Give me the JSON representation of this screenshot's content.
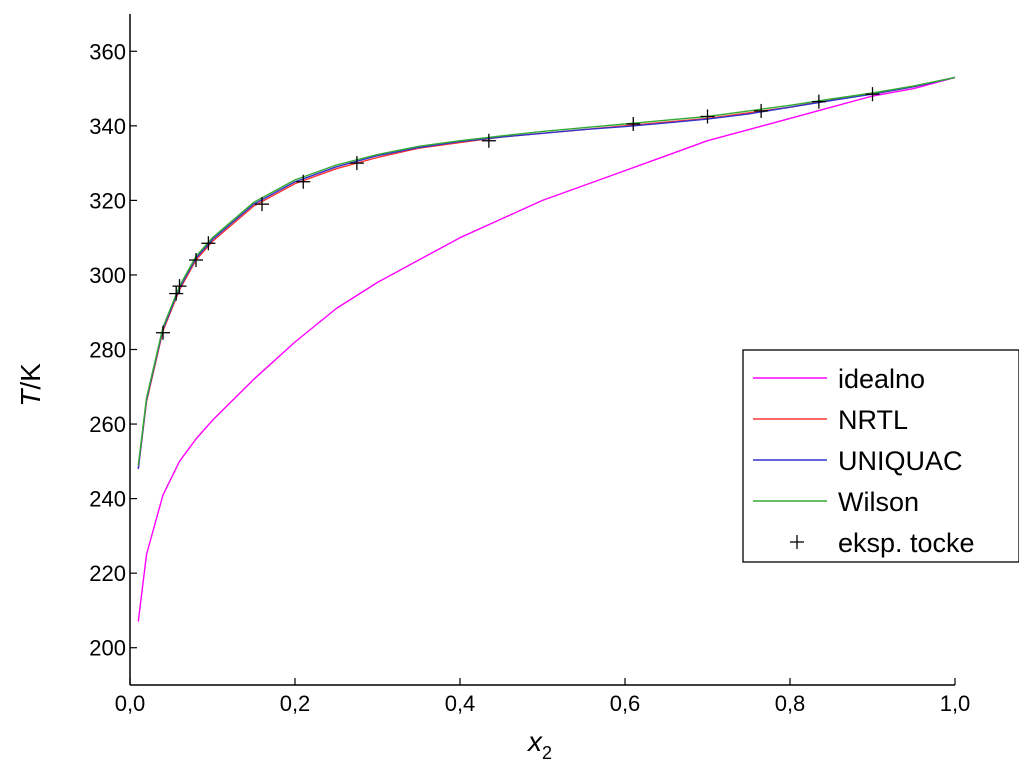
{
  "chart_data": {
    "type": "line",
    "title": "",
    "ylabel_italic": "T",
    "ylabel_rest": "/K",
    "xlabel_main": "x",
    "xlabel_sub": "2",
    "xlim": [
      0.0,
      1.0
    ],
    "ylim": [
      190,
      370
    ],
    "x_ticks": [
      0.0,
      0.2,
      0.4,
      0.6,
      0.8,
      1.0
    ],
    "x_tick_labels": [
      "0,0",
      "0,2",
      "0,4",
      "0,6",
      "0,8",
      "1,0"
    ],
    "y_ticks": [
      200,
      220,
      240,
      260,
      280,
      300,
      320,
      340,
      360
    ],
    "y_tick_labels": [
      "200",
      "220",
      "240",
      "260",
      "280",
      "300",
      "320",
      "340",
      "360"
    ],
    "grid": false,
    "legend_position": "right",
    "series": [
      {
        "name": "idealno",
        "color": "#ff00ff",
        "kind": "line",
        "x": [
          0.01,
          0.02,
          0.04,
          0.06,
          0.08,
          0.1,
          0.15,
          0.2,
          0.25,
          0.3,
          0.35,
          0.4,
          0.45,
          0.5,
          0.55,
          0.6,
          0.65,
          0.7,
          0.75,
          0.8,
          0.85,
          0.9,
          0.95,
          1.0
        ],
        "y": [
          207,
          225,
          241,
          250,
          256,
          261,
          272,
          282,
          291,
          298,
          304,
          310,
          315,
          320,
          324,
          328,
          332,
          336,
          339,
          342,
          345,
          348,
          350,
          353
        ]
      },
      {
        "name": "NRTL",
        "color": "#ff3333",
        "kind": "line",
        "x": [
          0.01,
          0.02,
          0.04,
          0.06,
          0.08,
          0.1,
          0.15,
          0.2,
          0.25,
          0.3,
          0.35,
          0.4,
          0.45,
          0.5,
          0.55,
          0.6,
          0.65,
          0.7,
          0.75,
          0.8,
          0.85,
          0.9,
          0.95,
          1.0
        ],
        "y": [
          248,
          266,
          285,
          296,
          304,
          309,
          318.5,
          324.5,
          328.5,
          331.5,
          334,
          335.5,
          337,
          338,
          339,
          340,
          341,
          342,
          343.5,
          345,
          347,
          348.5,
          350.5,
          353
        ]
      },
      {
        "name": "UNIQUAC",
        "color": "#3333cc",
        "kind": "line",
        "x": [
          0.01,
          0.02,
          0.04,
          0.06,
          0.08,
          0.1,
          0.15,
          0.2,
          0.25,
          0.3,
          0.35,
          0.4,
          0.45,
          0.5,
          0.55,
          0.6,
          0.65,
          0.7,
          0.75,
          0.8,
          0.85,
          0.9,
          0.95,
          1.0
        ],
        "y": [
          248,
          266.5,
          285.5,
          296.5,
          304.5,
          309.5,
          319,
          325,
          329,
          332,
          334.2,
          335.8,
          337,
          338,
          339,
          339.8,
          340.8,
          341.8,
          343.2,
          345,
          346.8,
          348.5,
          350.5,
          353
        ]
      },
      {
        "name": "Wilson",
        "color": "#33aa33",
        "kind": "line",
        "x": [
          0.01,
          0.02,
          0.04,
          0.06,
          0.08,
          0.1,
          0.15,
          0.2,
          0.25,
          0.3,
          0.35,
          0.4,
          0.45,
          0.5,
          0.55,
          0.6,
          0.65,
          0.7,
          0.75,
          0.8,
          0.85,
          0.9,
          0.95,
          1.0
        ],
        "y": [
          249,
          267,
          286,
          297,
          305,
          310,
          319.5,
          325.5,
          329.5,
          332.3,
          334.5,
          336,
          337.3,
          338.5,
          339.5,
          340.5,
          341.5,
          342.5,
          344,
          345.5,
          347.2,
          348.8,
          350.7,
          353
        ]
      },
      {
        "name": "eksp. tocke",
        "color": "#000000",
        "kind": "marker",
        "x": [
          0.04,
          0.056,
          0.06,
          0.08,
          0.095,
          0.16,
          0.21,
          0.275,
          0.435,
          0.61,
          0.7,
          0.765,
          0.835,
          0.9
        ],
        "y": [
          284.5,
          295,
          297,
          304,
          308.5,
          319,
          325,
          330,
          336,
          340.5,
          342.5,
          344,
          346.5,
          348.5
        ]
      }
    ]
  }
}
